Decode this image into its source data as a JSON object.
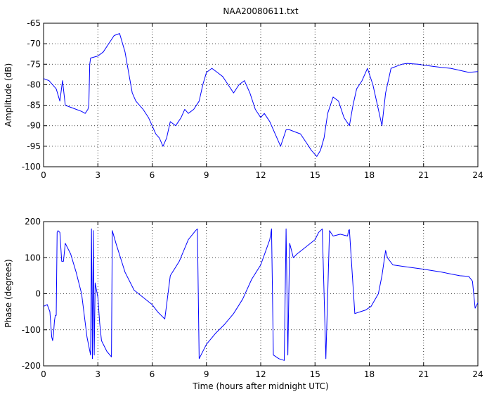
{
  "chart_data": [
    {
      "type": "line",
      "title": "NAA20080611.txt",
      "xlabel": "",
      "ylabel": "Amplitude (dB)",
      "xlim": [
        0,
        24
      ],
      "ylim": [
        -100,
        -65
      ],
      "xticks": [
        0,
        3,
        6,
        9,
        12,
        15,
        18,
        21,
        24
      ],
      "yticks": [
        -100,
        -95,
        -90,
        -85,
        -80,
        -75,
        -70,
        -65
      ],
      "grid": true,
      "color": "#0000ff",
      "series": [
        {
          "x": [
            0,
            0.3,
            0.7,
            0.9,
            1.05,
            1.2,
            1.5,
            1.8,
            2.1,
            2.3,
            2.45,
            2.5,
            2.55,
            2.6,
            3.0,
            3.3,
            3.6,
            3.9,
            4.2,
            4.5,
            4.7,
            4.9,
            5.1,
            5.3,
            5.5,
            5.8,
            6.0,
            6.2,
            6.4,
            6.6,
            6.8,
            7.0,
            7.3,
            7.6,
            7.8,
            8.0,
            8.3,
            8.6,
            8.8,
            9.0,
            9.3,
            9.6,
            9.9,
            10.2,
            10.5,
            10.8,
            11.1,
            11.4,
            11.7,
            12.0,
            12.2,
            12.5,
            12.8,
            13.1,
            13.4,
            13.6,
            13.9,
            14.2,
            14.5,
            14.8,
            15.1,
            15.3,
            15.5,
            15.7,
            16.0,
            16.3,
            16.6,
            16.9,
            17.1,
            17.3,
            17.6,
            17.9,
            18.2,
            18.5,
            18.7,
            18.9,
            19.2,
            19.5,
            19.8,
            20.1,
            20.4,
            20.7,
            21.0,
            21.5,
            22.0,
            22.5,
            23.0,
            23.5,
            24.0
          ],
          "y": [
            -78.5,
            -79,
            -81,
            -84,
            -79,
            -85,
            -85.5,
            -86,
            -86.5,
            -87,
            -86,
            -85,
            -75,
            -73.5,
            -73,
            -72,
            -70,
            -68,
            -67.5,
            -72,
            -77,
            -82,
            -84,
            -85,
            -86,
            -88,
            -90,
            -92,
            -93,
            -95,
            -93,
            -89,
            -90,
            -88,
            -86,
            -87,
            -86,
            -84,
            -80,
            -77,
            -76,
            -77,
            -78,
            -80,
            -82,
            -80,
            -79,
            -82,
            -86,
            -88,
            -87,
            -89,
            -92,
            -95,
            -91,
            -91,
            -91.5,
            -92,
            -94,
            -96,
            -97.5,
            -96,
            -93,
            -87,
            -83,
            -84,
            -88,
            -90,
            -85,
            -81,
            -79,
            -76,
            -80,
            -86,
            -90,
            -82,
            -76,
            -75.5,
            -75,
            -74.8,
            -74.9,
            -75,
            -75.2,
            -75.5,
            -75.8,
            -76,
            -76.5,
            -77,
            -76.8
          ]
        }
      ]
    },
    {
      "type": "line",
      "title": "",
      "xlabel": "Time (hours after midnight UTC)",
      "ylabel": "Phase (degrees)",
      "xlim": [
        0,
        24
      ],
      "ylim": [
        -200,
        200
      ],
      "xticks": [
        0,
        3,
        6,
        9,
        12,
        15,
        18,
        21,
        24
      ],
      "yticks": [
        -200,
        -100,
        0,
        100,
        200
      ],
      "grid": true,
      "color": "#0000ff",
      "series": [
        {
          "x": [
            0,
            0.2,
            0.35,
            0.45,
            0.5,
            0.55,
            0.6,
            0.65,
            0.7,
            0.75,
            0.8,
            0.9,
            1.0,
            1.1,
            1.2,
            1.5,
            1.8,
            2.1,
            2.4,
            2.6,
            2.65,
            2.7,
            2.75,
            2.8,
            2.85,
            3.0,
            3.1,
            3.2,
            3.5,
            3.75,
            3.8,
            4.0,
            4.5,
            5.0,
            5.5,
            6.0,
            6.3,
            6.5,
            6.7,
            7.0,
            7.5,
            8.0,
            8.4,
            8.5,
            8.6,
            9.0,
            9.5,
            10.0,
            10.5,
            11.0,
            11.5,
            12.0,
            12.5,
            12.6,
            12.7,
            13.0,
            13.3,
            13.4,
            13.5,
            13.6,
            13.8,
            14.0,
            14.5,
            15.0,
            15.2,
            15.4,
            15.6,
            15.8,
            16.0,
            16.4,
            16.8,
            16.85,
            16.9,
            17.2,
            17.5,
            17.8,
            18.1,
            18.5,
            18.7,
            18.9,
            19.0,
            19.3,
            20.0,
            21.0,
            22.0,
            23.0,
            23.5,
            23.7,
            23.85,
            24.0
          ],
          "y": [
            -35,
            -30,
            -50,
            -120,
            -130,
            -110,
            -75,
            -60,
            -60,
            170,
            175,
            170,
            90,
            90,
            140,
            110,
            60,
            0,
            -120,
            -170,
            180,
            -180,
            175,
            -170,
            30,
            -10,
            -80,
            -130,
            -160,
            -175,
            175,
            140,
            60,
            10,
            -10,
            -30,
            -50,
            -60,
            -70,
            50,
            90,
            150,
            175,
            180,
            -180,
            -140,
            -110,
            -85,
            -55,
            -15,
            40,
            80,
            150,
            180,
            -170,
            -180,
            -185,
            180,
            -170,
            140,
            100,
            110,
            130,
            150,
            170,
            180,
            -180,
            175,
            160,
            165,
            160,
            175,
            178,
            -55,
            -50,
            -45,
            -35,
            0,
            50,
            120,
            100,
            80,
            75,
            68,
            60,
            50,
            48,
            35,
            -40,
            -25
          ]
        }
      ]
    }
  ]
}
